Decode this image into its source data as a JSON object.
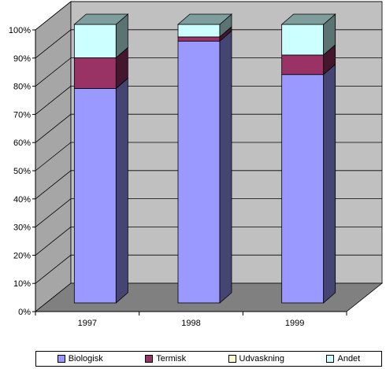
{
  "chart_data": {
    "type": "bar",
    "stacked": true,
    "percent": true,
    "categories": [
      "1997",
      "1998",
      "1999"
    ],
    "series": [
      {
        "name": "Biologisk",
        "values": [
          77,
          94,
          82
        ],
        "color": "#9999ff"
      },
      {
        "name": "Termisk",
        "values": [
          11,
          1.5,
          7
        ],
        "color": "#993366"
      },
      {
        "name": "Udvaskning",
        "values": [
          0,
          0,
          0
        ],
        "color": "#ffffcc"
      },
      {
        "name": "Andet",
        "values": [
          12,
          4.5,
          11
        ],
        "color": "#ccffff"
      }
    ],
    "yticks": [
      "0%",
      "10%",
      "20%",
      "30%",
      "40%",
      "50%",
      "60%",
      "70%",
      "80%",
      "90%",
      "100%"
    ],
    "ylim": [
      0,
      100
    ],
    "grid": true,
    "legend_position": "bottom",
    "wall_color": "#c0c0c0",
    "floor_color": "#808080"
  }
}
